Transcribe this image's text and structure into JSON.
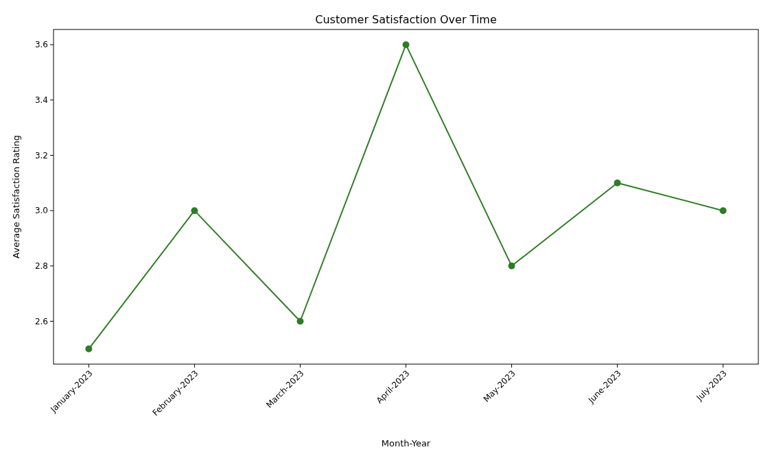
{
  "chart_data": {
    "type": "line",
    "title": "Customer Satisfaction Over Time",
    "xlabel": "Month-Year",
    "ylabel": "Average Satisfaction Rating",
    "categories": [
      "January-2023",
      "February-2023",
      "March-2023",
      "April-2023",
      "May-2023",
      "June-2023",
      "July-2023"
    ],
    "series": [
      {
        "color": "#2e7d23",
        "values": [
          2.5,
          3.0,
          2.6,
          3.6,
          2.8,
          3.1,
          3.0
        ]
      }
    ],
    "ylim": [
      2.445,
      3.655
    ],
    "yticks": [
      {
        "value": 2.6,
        "label": "2.6"
      },
      {
        "value": 2.8,
        "label": "2.8"
      },
      {
        "value": 3.0,
        "label": "3.0"
      },
      {
        "value": 3.2,
        "label": "3.2"
      },
      {
        "value": 3.4,
        "label": "3.4"
      },
      {
        "value": 3.6,
        "label": "3.6"
      }
    ],
    "marker": "circle",
    "line_style": "solid"
  }
}
